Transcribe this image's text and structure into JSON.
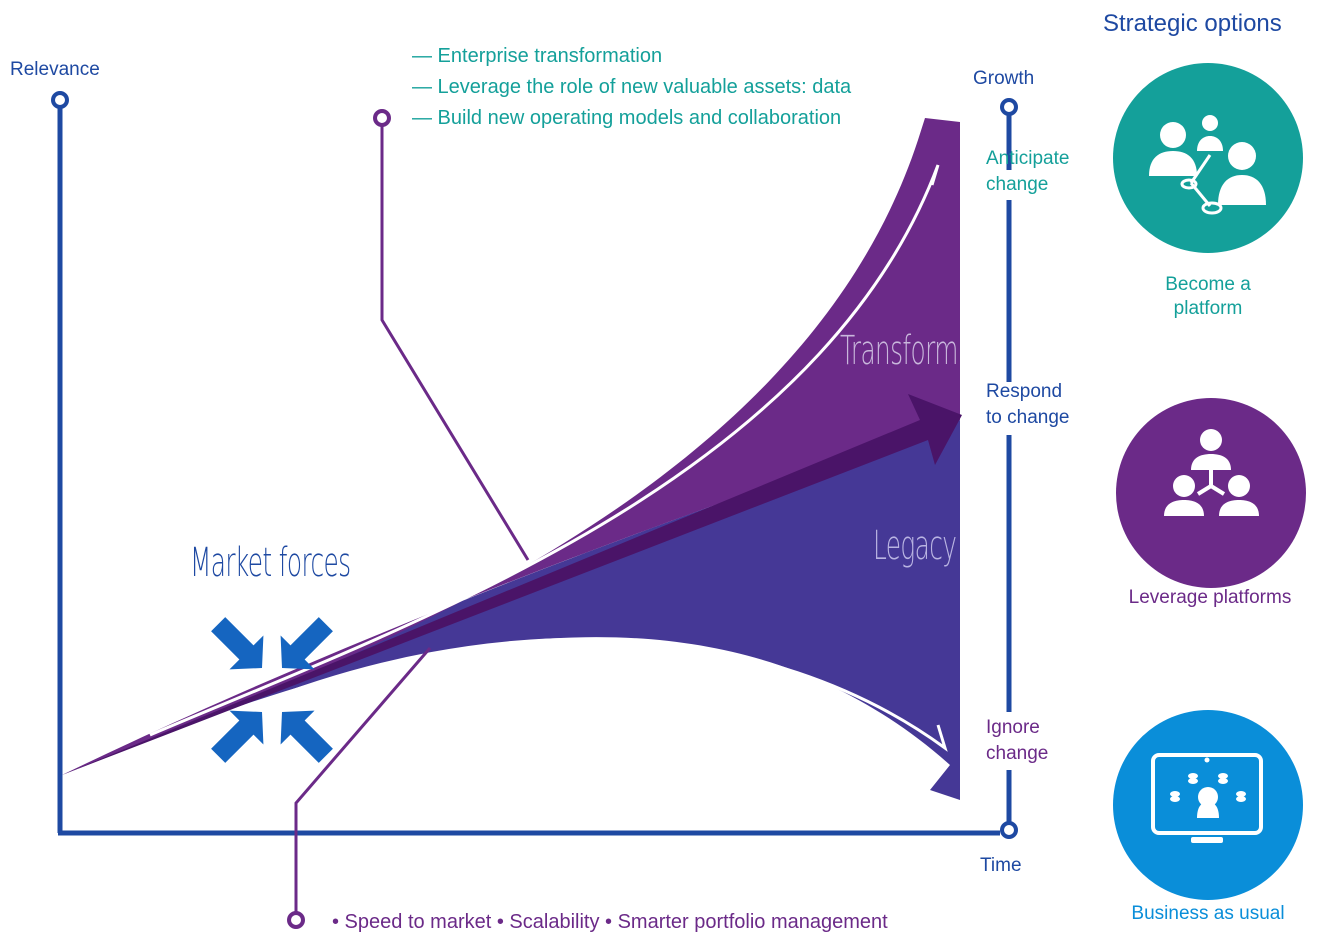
{
  "axes": {
    "y_label": "Relevance",
    "x_label": "Time",
    "growth_label": "Growth"
  },
  "transformation_list": [
    "— Enterprise transformation",
    "— Leverage the role of new valuable assets: data",
    "— Build new operating models and collaboration"
  ],
  "right_axis": {
    "anticipate": [
      "Anticipate",
      "change"
    ],
    "respond": [
      "Respond",
      "to change"
    ],
    "ignore": [
      "Ignore",
      "change"
    ]
  },
  "bands": {
    "transform": "Transform",
    "legacy": "Legacy"
  },
  "market_forces": "Market forces",
  "bottom_bullets": "• Speed to market • Scalability • Smarter portfolio management",
  "strategic_options": {
    "title": "Strategic options",
    "items": [
      {
        "label_lines": [
          "Become a",
          "platform"
        ],
        "color": "#14a09a",
        "icon": "network-people-icon"
      },
      {
        "label_lines": [
          "Leverage platforms"
        ],
        "color": "#6b2a88",
        "icon": "hierarchy-people-icon"
      },
      {
        "label_lines": [
          "Business as usual"
        ],
        "color": "#0a8ed9",
        "icon": "monitor-head-icon"
      }
    ]
  },
  "colors": {
    "axis_blue": "#1e49a2",
    "purple": "#6b2a88",
    "indigo": "#453896",
    "dark_purple": "#4a1468",
    "teal": "#14a09a",
    "arrow_blue": "#1565c0",
    "bau_blue": "#0a8ed9"
  }
}
